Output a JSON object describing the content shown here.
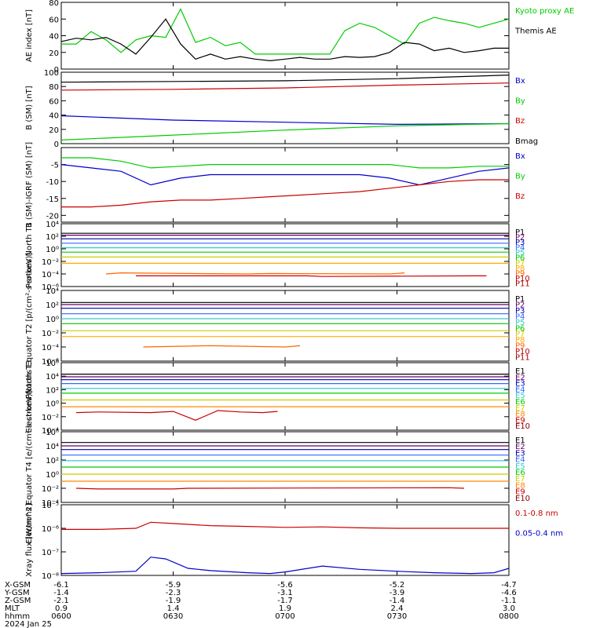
{
  "chart_data": [
    {
      "type": "line",
      "ylabel": "AE index [nT]",
      "ylim": [
        0,
        80
      ],
      "yticks": [
        0,
        20,
        40,
        60,
        80
      ],
      "yticklabels": [
        "0",
        "20",
        "40",
        "60",
        "80"
      ],
      "series": [
        {
          "name": "Kyoto proxy AE",
          "color": "#00cc00",
          "x": [
            0,
            4,
            8,
            12,
            16,
            20,
            24,
            28,
            32,
            36,
            40,
            44,
            48,
            52,
            56,
            60,
            64,
            68,
            72,
            76,
            80,
            84,
            88,
            92,
            96,
            100,
            104,
            108,
            112,
            116,
            120
          ],
          "y": [
            30,
            30,
            45,
            35,
            20,
            35,
            40,
            38,
            72,
            32,
            38,
            28,
            32,
            18,
            18,
            18,
            18,
            18,
            18,
            46,
            55,
            50,
            40,
            30,
            55,
            62,
            58,
            55,
            50,
            55,
            60
          ]
        },
        {
          "name": "Themis AE",
          "color": "#000000",
          "x": [
            0,
            4,
            8,
            12,
            16,
            20,
            24,
            28,
            32,
            36,
            40,
            44,
            48,
            52,
            56,
            60,
            64,
            68,
            72,
            76,
            80,
            84,
            88,
            92,
            96,
            100,
            104,
            108,
            112,
            116,
            120
          ],
          "y": [
            33,
            37,
            35,
            38,
            30,
            18,
            38,
            60,
            30,
            12,
            18,
            12,
            15,
            12,
            10,
            12,
            14,
            12,
            12,
            15,
            14,
            15,
            20,
            32,
            30,
            22,
            25,
            20,
            22,
            25,
            25
          ]
        }
      ]
    },
    {
      "type": "line",
      "ylabel": "B (SM) [nT]",
      "ylim": [
        0,
        100
      ],
      "yticks": [
        0,
        20,
        40,
        60,
        80,
        100
      ],
      "yticklabels": [
        "0",
        "20",
        "40",
        "60",
        "80",
        "100"
      ],
      "series": [
        {
          "name": "Bx",
          "color": "#0000cc",
          "x": [
            0,
            30,
            60,
            90,
            120
          ],
          "y": [
            39,
            33,
            30,
            27,
            28
          ]
        },
        {
          "name": "By",
          "color": "#00cc00",
          "x": [
            0,
            30,
            60,
            90,
            120
          ],
          "y": [
            5,
            12,
            19,
            25,
            28
          ]
        },
        {
          "name": "Bz",
          "color": "#cc0000",
          "x": [
            0,
            30,
            60,
            90,
            120
          ],
          "y": [
            75,
            76,
            78,
            82,
            85
          ]
        },
        {
          "name": "Bmag",
          "color": "#000000",
          "x": [
            0,
            30,
            60,
            90,
            120
          ],
          "y": [
            86,
            87,
            88,
            91,
            96
          ]
        }
      ]
    },
    {
      "type": "line",
      "ylabel": "B (SM)-IGRF (SM) [nT]",
      "ylim": [
        -22,
        0
      ],
      "yticks": [
        -20,
        -15,
        -10,
        -5
      ],
      "yticklabels": [
        "-20",
        "-15",
        "-10",
        "-5"
      ],
      "series": [
        {
          "name": "Bx",
          "color": "#0000cc",
          "x": [
            0,
            8,
            16,
            24,
            32,
            40,
            48,
            56,
            64,
            72,
            80,
            88,
            96,
            104,
            112,
            120
          ],
          "y": [
            -5,
            -6,
            -7,
            -11,
            -9,
            -8,
            -8,
            -8,
            -8,
            -8,
            -8,
            -9,
            -11,
            -9,
            -7,
            -6
          ]
        },
        {
          "name": "By",
          "color": "#00cc00",
          "x": [
            0,
            8,
            16,
            24,
            32,
            40,
            48,
            56,
            64,
            72,
            80,
            88,
            96,
            104,
            112,
            120
          ],
          "y": [
            -3,
            -3,
            -4,
            -6,
            -5.5,
            -5,
            -5,
            -5,
            -5,
            -5,
            -5,
            -5,
            -6,
            -6,
            -5.5,
            -5.5
          ]
        },
        {
          "name": "Bz",
          "color": "#cc0000",
          "x": [
            0,
            8,
            16,
            24,
            32,
            40,
            48,
            56,
            64,
            72,
            80,
            88,
            96,
            104,
            112,
            120
          ],
          "y": [
            -17.5,
            -17.5,
            -17,
            -16,
            -15.5,
            -15.5,
            -15,
            -14.5,
            -14,
            -13.5,
            -13,
            -12,
            -11,
            -10,
            -9.5,
            -9.5
          ]
        }
      ]
    },
    {
      "type": "line",
      "ylabel": "Protons North T1",
      "yscale": "log",
      "ylim": [
        1e-06,
        10000
      ],
      "yticks": [
        1e-06,
        0.0001,
        0.01,
        1,
        100,
        10000
      ],
      "yticklabels": [
        "10⁻⁶",
        "10⁻⁴",
        "10⁻²",
        "10⁰",
        "10²",
        "10⁴"
      ],
      "series": [
        {
          "name": "P1",
          "color": "#000000",
          "x": [
            0,
            120
          ],
          "y": [
            300,
            300
          ]
        },
        {
          "name": "P2",
          "color": "#660066",
          "x": [
            0,
            120
          ],
          "y": [
            150,
            150
          ]
        },
        {
          "name": "P3",
          "color": "#0000aa",
          "x": [
            0,
            120
          ],
          "y": [
            40,
            40
          ]
        },
        {
          "name": "P4",
          "color": "#3366ff",
          "x": [
            0,
            120
          ],
          "y": [
            8,
            8
          ]
        },
        {
          "name": "P5",
          "color": "#33cccc",
          "x": [
            0,
            120
          ],
          "y": [
            1.5,
            1.5
          ]
        },
        {
          "name": "P6",
          "color": "#00cc00",
          "x": [
            0,
            120
          ],
          "y": [
            0.3,
            0.3
          ]
        },
        {
          "name": "P7",
          "color": "#cccc00",
          "x": [
            0,
            120
          ],
          "y": [
            0.05,
            0.05
          ]
        },
        {
          "name": "P8",
          "color": "#ffaa00",
          "x": [
            0,
            120
          ],
          "y": [
            0.005,
            0.005
          ]
        },
        {
          "name": "P9",
          "color": "#ff6600",
          "x": [
            12,
            16,
            50,
            56,
            88,
            92
          ],
          "y": [
            0.0001,
            0.00015,
            0.0001,
            0.00012,
            0.0001,
            0.00015
          ]
        },
        {
          "name": "P10",
          "color": "#cc0000",
          "x": [
            20,
            30,
            66,
            70,
            110,
            114
          ],
          "y": [
            5e-05,
            5e-05,
            5e-05,
            4e-05,
            5e-05,
            5e-05
          ]
        },
        {
          "name": "P11",
          "color": "#990000",
          "x": [],
          "y": []
        }
      ]
    },
    {
      "type": "line",
      "ylabel": "Protons Equator T2 [p/(cm²-s-sr-keV)]",
      "yscale": "log",
      "ylim": [
        1e-06,
        10000
      ],
      "yticks": [
        1e-06,
        0.0001,
        0.01,
        1,
        100,
        10000
      ],
      "yticklabels": [
        "10⁻⁶",
        "10⁻⁴",
        "10⁻²",
        "10⁰",
        "10²",
        "10⁴"
      ],
      "series": [
        {
          "name": "P1",
          "color": "#000000",
          "x": [
            0,
            120
          ],
          "y": [
            200,
            200
          ]
        },
        {
          "name": "P2",
          "color": "#660066",
          "x": [
            0,
            120
          ],
          "y": [
            100,
            100
          ]
        },
        {
          "name": "P3",
          "color": "#0000aa",
          "x": [
            0,
            120
          ],
          "y": [
            30,
            30
          ]
        },
        {
          "name": "P4",
          "color": "#3366ff",
          "x": [
            0,
            120
          ],
          "y": [
            5,
            5
          ]
        },
        {
          "name": "P5",
          "color": "#33cccc",
          "x": [
            0,
            120
          ],
          "y": [
            1,
            1
          ]
        },
        {
          "name": "P6",
          "color": "#00cc00",
          "x": [
            0,
            120
          ],
          "y": [
            0.2,
            0.2
          ]
        },
        {
          "name": "P7",
          "color": "#cccc00",
          "x": [
            0,
            120
          ],
          "y": [
            0.02,
            0.02
          ]
        },
        {
          "name": "P8",
          "color": "#ffaa00",
          "x": [
            0,
            120
          ],
          "y": [
            0.003,
            0.003
          ]
        },
        {
          "name": "P9",
          "color": "#ff6600",
          "x": [
            22,
            40,
            60,
            64
          ],
          "y": [
            0.0001,
            0.00015,
            0.0001,
            0.00015
          ]
        },
        {
          "name": "P10",
          "color": "#cc0000",
          "x": [],
          "y": []
        },
        {
          "name": "P11",
          "color": "#990000",
          "x": [],
          "y": []
        }
      ]
    },
    {
      "type": "line",
      "ylabel": "Electrons North T3",
      "yscale": "log",
      "ylim": [
        0.0001,
        1000000
      ],
      "yticks": [
        0.0001,
        0.01,
        1,
        100,
        10000,
        1000000
      ],
      "yticklabels": [
        "10⁻⁴",
        "10⁻²",
        "10⁰",
        "10²",
        "10⁴",
        "10⁶"
      ],
      "series": [
        {
          "name": "E1",
          "color": "#000000",
          "x": [
            0,
            120
          ],
          "y": [
            20000,
            20000
          ]
        },
        {
          "name": "E2",
          "color": "#660066",
          "x": [
            0,
            120
          ],
          "y": [
            8000,
            8000
          ]
        },
        {
          "name": "E3",
          "color": "#0000aa",
          "x": [
            0,
            120
          ],
          "y": [
            3000,
            3000
          ]
        },
        {
          "name": "E4",
          "color": "#3366ff",
          "x": [
            0,
            120
          ],
          "y": [
            800,
            800
          ]
        },
        {
          "name": "E5",
          "color": "#33cccc",
          "x": [
            0,
            120
          ],
          "y": [
            150,
            150
          ]
        },
        {
          "name": "E6",
          "color": "#00cc00",
          "x": [
            0,
            120
          ],
          "y": [
            30,
            30
          ]
        },
        {
          "name": "E7",
          "color": "#cccc00",
          "x": [
            0,
            120
          ],
          "y": [
            3,
            3
          ]
        },
        {
          "name": "E8",
          "color": "#ff8800",
          "x": [
            0,
            120
          ],
          "y": [
            0.3,
            0.3
          ]
        },
        {
          "name": "E9",
          "color": "#cc0000",
          "x": [
            4,
            10,
            24,
            30,
            36,
            42,
            48,
            54,
            58
          ],
          "y": [
            0.04,
            0.05,
            0.04,
            0.06,
            0.003,
            0.08,
            0.05,
            0.04,
            0.06
          ]
        },
        {
          "name": "E10",
          "color": "#880000",
          "x": [],
          "y": []
        }
      ]
    },
    {
      "type": "line",
      "ylabel": "Electrons Equator T4 [e/(cm²-s-sr-keV)]",
      "yscale": "log",
      "ylim": [
        0.0001,
        1000000
      ],
      "yticks": [
        0.0001,
        0.01,
        1,
        100,
        10000,
        1000000
      ],
      "yticklabels": [
        "10⁻⁴",
        "10⁻²",
        "10⁰",
        "10²",
        "10⁴",
        "10⁶"
      ],
      "series": [
        {
          "name": "E1",
          "color": "#000000",
          "x": [
            0,
            120
          ],
          "y": [
            30000,
            30000
          ]
        },
        {
          "name": "E2",
          "color": "#660066",
          "x": [
            0,
            120
          ],
          "y": [
            10000,
            10000
          ]
        },
        {
          "name": "E3",
          "color": "#0000aa",
          "x": [
            0,
            120
          ],
          "y": [
            3000,
            3000
          ]
        },
        {
          "name": "E4",
          "color": "#3366ff",
          "x": [
            0,
            120
          ],
          "y": [
            500,
            500
          ]
        },
        {
          "name": "E5",
          "color": "#33cccc",
          "x": [
            0,
            120
          ],
          "y": [
            80,
            80
          ]
        },
        {
          "name": "E6",
          "color": "#00cc00",
          "x": [
            0,
            120
          ],
          "y": [
            10,
            10
          ]
        },
        {
          "name": "E7",
          "color": "#cccc00",
          "x": [
            0,
            120
          ],
          "y": [
            1,
            1
          ]
        },
        {
          "name": "E8",
          "color": "#ff8800",
          "x": [
            0,
            120
          ],
          "y": [
            0.1,
            0.1
          ]
        },
        {
          "name": "E9",
          "color": "#cc0000",
          "x": [
            4,
            10,
            30,
            34,
            104,
            108
          ],
          "y": [
            0.01,
            0.008,
            0.008,
            0.01,
            0.012,
            0.01
          ]
        },
        {
          "name": "E10",
          "color": "#880000",
          "x": [],
          "y": []
        }
      ]
    },
    {
      "type": "line",
      "ylabel": "Xray flux [W/m^2]",
      "yscale": "log",
      "ylim": [
        1e-08,
        1e-05
      ],
      "yticks": [
        1e-08,
        1e-07,
        1e-06,
        1e-05
      ],
      "yticklabels": [
        "10⁻⁸",
        "10⁻⁷",
        "10⁻⁶",
        "10⁻⁵"
      ],
      "series": [
        {
          "name": "0.1-0.8 nm",
          "color": "#cc0000",
          "x": [
            0,
            10,
            20,
            24,
            30,
            40,
            50,
            60,
            70,
            80,
            90,
            100,
            110,
            120
          ],
          "y": [
            9e-07,
            9e-07,
            1e-06,
            1.8e-06,
            1.6e-06,
            1.3e-06,
            1.2e-06,
            1.1e-06,
            1.15e-06,
            1.05e-06,
            1e-06,
            1e-06,
            1e-06,
            1e-06
          ]
        },
        {
          "name": "0.05-0.4 nm",
          "color": "#0000cc",
          "x": [
            0,
            10,
            20,
            24,
            28,
            34,
            40,
            50,
            56,
            60,
            70,
            80,
            90,
            100,
            110,
            116,
            120
          ],
          "y": [
            1.2e-08,
            1.3e-08,
            1.5e-08,
            6e-08,
            5e-08,
            2e-08,
            1.6e-08,
            1.3e-08,
            1.2e-08,
            1.4e-08,
            2.5e-08,
            1.8e-08,
            1.5e-08,
            1.3e-08,
            1.2e-08,
            1.3e-08,
            2e-08
          ]
        }
      ]
    }
  ],
  "x_axis": {
    "positions": [
      0,
      30,
      60,
      90,
      120
    ],
    "rows": [
      {
        "label": "X-GSM",
        "values": [
          "-6.1",
          "-5.9",
          "-5.6",
          "-5.2",
          "-4.7"
        ]
      },
      {
        "label": "Y-GSM",
        "values": [
          "-1.4",
          "-2.3",
          "-3.1",
          "-3.9",
          "-4.6"
        ]
      },
      {
        "label": "Z-GSM",
        "values": [
          "-2.1",
          "-1.9",
          "-1.7",
          "-1.4",
          "-1.1"
        ]
      },
      {
        "label": "MLT",
        "values": [
          "0.9",
          "1.4",
          "1.9",
          "2.4",
          "3.0"
        ]
      },
      {
        "label": "hhmm",
        "values": [
          "0600",
          "0630",
          "0700",
          "0730",
          "0800"
        ]
      }
    ],
    "date": "2024 Jan 25"
  }
}
